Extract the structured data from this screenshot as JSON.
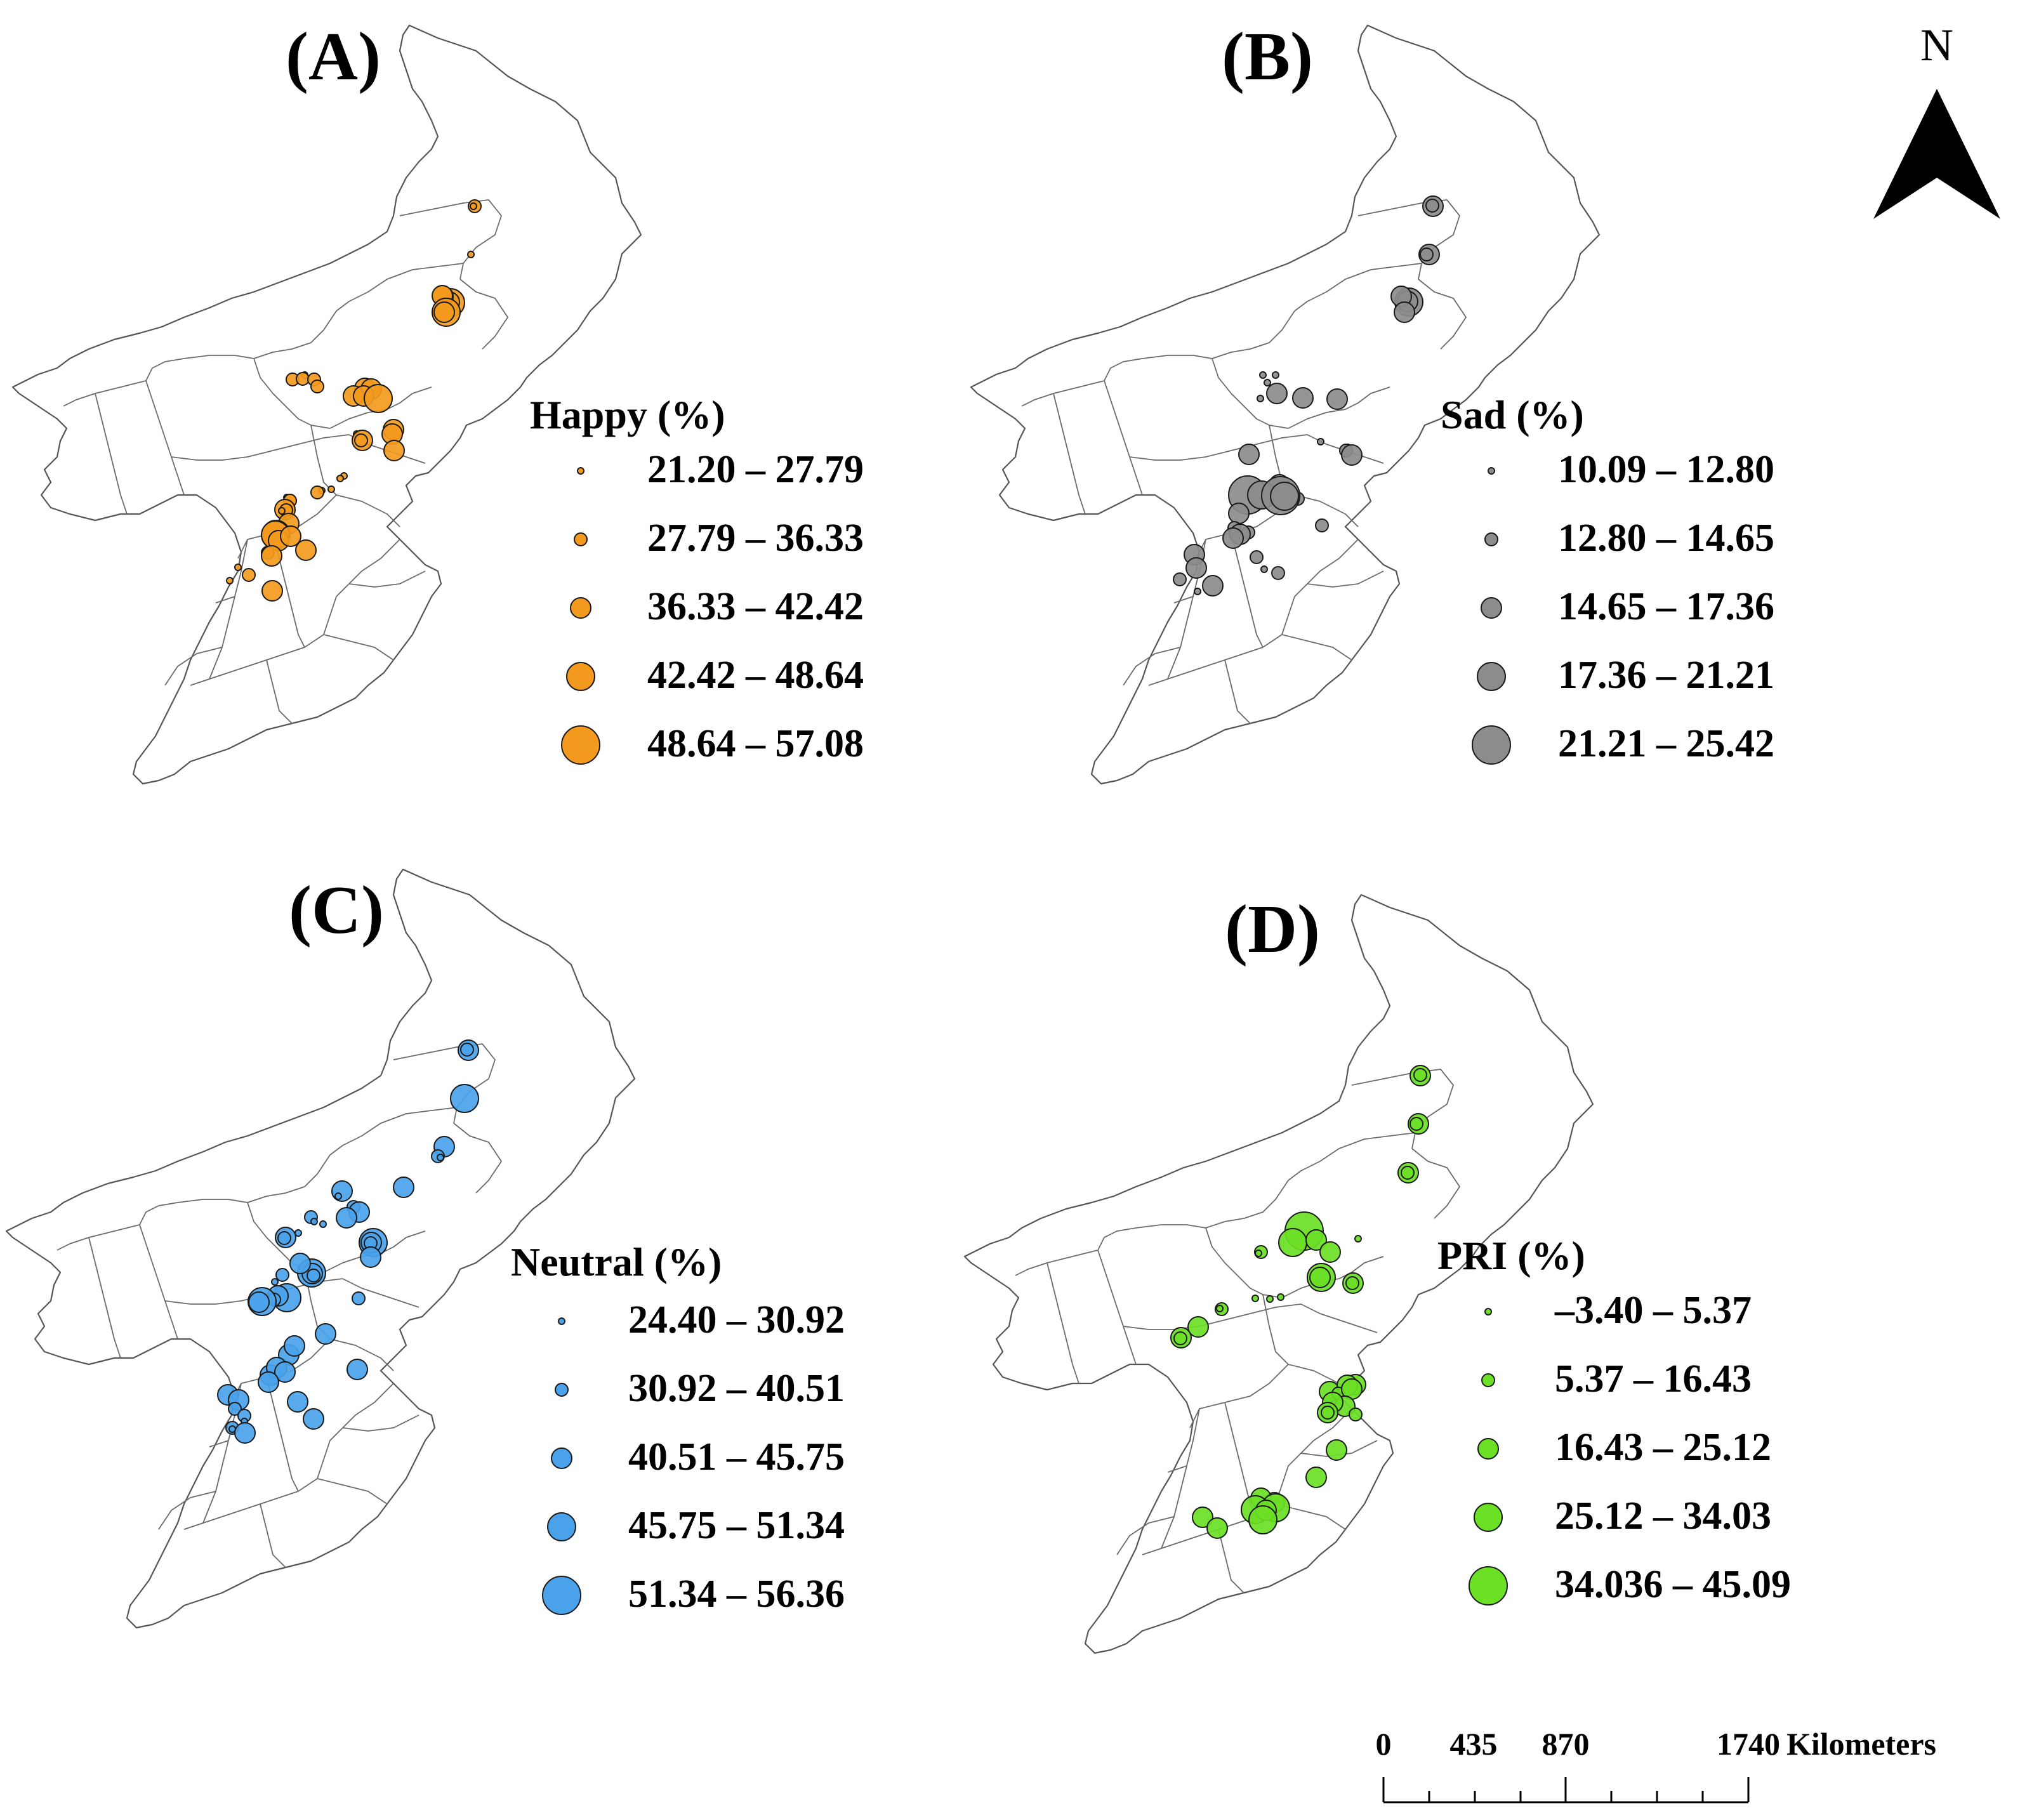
{
  "panels": [
    {
      "id": "A",
      "label": "(A)",
      "legend_title": "Happy (%)",
      "color": "#f39a1e",
      "classes": [
        "21.20 – 27.79",
        "27.79 – 36.33",
        "36.33 – 42.42",
        "42.42 – 48.64",
        "48.64 – 57.08"
      ],
      "sites": [
        [
          408,
          305,
          2
        ],
        [
          406,
          305,
          1
        ],
        [
          402,
          381,
          1
        ],
        [
          370,
          457,
          4
        ],
        [
          368,
          456,
          3
        ],
        [
          358,
          447,
          3
        ],
        [
          357,
          446,
          3
        ],
        [
          363,
          472,
          4
        ],
        [
          360,
          472,
          3
        ],
        [
          140,
          571,
          1
        ],
        [
          121,
          578,
          2
        ],
        [
          137,
          577,
          2
        ],
        [
          155,
          578,
          2
        ],
        [
          160,
          589,
          2
        ],
        [
          235,
          592,
          3
        ],
        [
          245,
          593,
          3
        ],
        [
          217,
          604,
          3
        ],
        [
          233,
          604,
          3
        ],
        [
          256,
          608,
          4
        ],
        [
          280,
          657,
          3
        ],
        [
          278,
          664,
          3
        ],
        [
          222,
          664,
          1
        ],
        [
          231,
          674,
          3
        ],
        [
          229,
          674,
          2
        ],
        [
          281,
          690,
          3
        ],
        [
          202,
          730,
          1
        ],
        [
          196,
          734,
          1
        ],
        [
          182,
          751,
          1
        ],
        [
          167,
          753,
          1
        ],
        [
          160,
          756,
          2
        ],
        [
          112,
          764,
          1
        ],
        [
          117,
          769,
          2
        ],
        [
          117,
          769,
          2
        ],
        [
          109,
          783,
          3
        ],
        [
          111,
          784,
          2
        ],
        [
          104,
          785,
          1
        ],
        [
          115,
          805,
          3
        ],
        [
          101,
          810,
          1
        ],
        [
          95,
          822,
          4
        ],
        [
          94,
          823,
          4
        ],
        [
          99,
          832,
          3
        ],
        [
          118,
          825,
          3
        ],
        [
          142,
          847,
          3
        ],
        [
          82,
          851,
          2
        ],
        [
          88,
          856,
          3
        ],
        [
          35,
          874,
          1
        ],
        [
          52,
          886,
          2
        ],
        [
          22,
          895,
          1
        ],
        [
          89,
          911,
          3
        ]
      ],
      "legend_sizes": [
        1,
        2,
        3,
        4,
        5
      ]
    },
    {
      "id": "B",
      "label": "(B)",
      "legend_title": "Sad (%)",
      "color": "#8c8c8c",
      "classes": [
        "10.09 – 12.80",
        "12.80 – 14.65",
        "14.65 – 17.36",
        "17.36 – 21.21",
        "21.21 – 25.42"
      ],
      "sites": [
        [
          408,
          305,
          3
        ],
        [
          407,
          304,
          2
        ],
        [
          402,
          381,
          3
        ],
        [
          398,
          381,
          2
        ],
        [
          370,
          456,
          4
        ],
        [
          368,
          455,
          3
        ],
        [
          358,
          447,
          3
        ],
        [
          363,
          472,
          3
        ],
        [
          147,
          583,
          1
        ],
        [
          160,
          571,
          1
        ],
        [
          140,
          571,
          1
        ],
        [
          162,
          600,
          3
        ],
        [
          203,
          607,
          3
        ],
        [
          136,
          608,
          1
        ],
        [
          257,
          609,
          3
        ],
        [
          231,
          676,
          1
        ],
        [
          274,
          685,
          1
        ],
        [
          271,
          690,
          2
        ],
        [
          118,
          696,
          3
        ],
        [
          166,
          744,
          3
        ],
        [
          195,
          766,
          2
        ],
        [
          233,
          808,
          2
        ],
        [
          280,
          697,
          3
        ],
        [
          116,
          760,
          5
        ],
        [
          138,
          760,
          4
        ],
        [
          168,
          761,
          5
        ],
        [
          174,
          762,
          4
        ],
        [
          102,
          789,
          3
        ],
        [
          95,
          812,
          2
        ],
        [
          117,
          819,
          2
        ],
        [
          104,
          822,
          3
        ],
        [
          93,
          828,
          3
        ],
        [
          130,
          858,
          2
        ],
        [
          164,
          883,
          2
        ],
        [
          142,
          877,
          1
        ],
        [
          32,
          854,
          3
        ],
        [
          35,
          875,
          3
        ],
        [
          9,
          893,
          2
        ],
        [
          37,
          912,
          1
        ],
        [
          61,
          903,
          3
        ]
      ],
      "legend_sizes": [
        1,
        2,
        3,
        4,
        5
      ]
    },
    {
      "id": "C",
      "label": "(C)",
      "legend_title": "Neutral (%)",
      "color": "#4aa3ea",
      "classes": [
        "24.40 – 30.92",
        "30.92 – 40.51",
        "40.51 – 45.75",
        "45.75 – 51.34",
        "51.34 – 56.36"
      ],
      "sites": [
        [
          408,
          305,
          3
        ],
        [
          406,
          304,
          2
        ],
        [
          402,
          381,
          4
        ],
        [
          370,
          457,
          3
        ],
        [
          360,
          472,
          2
        ],
        [
          364,
          474,
          1
        ],
        [
          306,
          521,
          3
        ],
        [
          209,
          527,
          3
        ],
        [
          203,
          535,
          1
        ],
        [
          227,
          552,
          2
        ],
        [
          236,
          560,
          3
        ],
        [
          160,
          568,
          2
        ],
        [
          165,
          575,
          1
        ],
        [
          216,
          569,
          3
        ],
        [
          179,
          579,
          1
        ],
        [
          258,
          608,
          4
        ],
        [
          255,
          608,
          3
        ],
        [
          254,
          609,
          2
        ],
        [
          140,
          593,
          1
        ],
        [
          120,
          600,
          3
        ],
        [
          118,
          601,
          2
        ],
        [
          122,
          695,
          4
        ],
        [
          108,
          692,
          3
        ],
        [
          102,
          698,
          2
        ],
        [
          83,
          701,
          4
        ],
        [
          78,
          702,
          3
        ],
        [
          161,
          656,
          4
        ],
        [
          162,
          657,
          3
        ],
        [
          164,
          660,
          2
        ],
        [
          254,
          631,
          3
        ],
        [
          143,
          641,
          3
        ],
        [
          115,
          659,
          2
        ],
        [
          103,
          670,
          1
        ],
        [
          235,
          696,
          2
        ],
        [
          233,
          808,
          3
        ],
        [
          125,
          785,
          3
        ],
        [
          183,
          752,
          3
        ],
        [
          134,
          771,
          3
        ],
        [
          96,
          817,
          3
        ],
        [
          106,
          805,
          3
        ],
        [
          119,
          812,
          3
        ],
        [
          93,
          828,
          3
        ],
        [
          139,
          859,
          3
        ],
        [
          164,
          886,
          3
        ],
        [
          29,
          848,
          3
        ],
        [
          46,
          856,
          3
        ],
        [
          40,
          870,
          2
        ],
        [
          55,
          881,
          2
        ],
        [
          36,
          900,
          2
        ],
        [
          36,
          902,
          1
        ],
        [
          55,
          890,
          1
        ],
        [
          56,
          908,
          3
        ]
      ],
      "legend_sizes": [
        1,
        2,
        3,
        4,
        5
      ]
    },
    {
      "id": "D",
      "label": "(D)",
      "legend_title": "PRI (%)",
      "color": "#6be025",
      "classes": [
        "–3.40 – 5.37",
        "5.37 – 16.43",
        "16.43 – 25.12",
        "25.12 – 34.03",
        "34.036 – 45.09"
      ],
      "sites": [
        [
          398,
          305,
          3
        ],
        [
          398,
          304,
          2
        ],
        [
          395,
          381,
          3
        ],
        [
          392,
          381,
          2
        ],
        [
          379,
          458,
          3
        ],
        [
          378,
          458,
          2
        ],
        [
          215,
          550,
          5
        ],
        [
          197,
          568,
          4
        ],
        [
          234,
          564,
          3
        ],
        [
          256,
          583,
          3
        ],
        [
          300,
          562,
          1
        ],
        [
          147,
          583,
          2
        ],
        [
          143,
          585,
          1
        ],
        [
          242,
          623,
          4
        ],
        [
          240,
          623,
          3
        ],
        [
          292,
          632,
          3
        ],
        [
          291,
          632,
          2
        ],
        [
          138,
          656,
          1
        ],
        [
          161,
          657,
          1
        ],
        [
          178,
          654,
          1
        ],
        [
          85,
          673,
          2
        ],
        [
          82,
          672,
          1
        ],
        [
          48,
          701,
          3
        ],
        [
          21,
          718,
          3
        ],
        [
          20,
          719,
          2
        ],
        [
          255,
          803,
          3
        ],
        [
          296,
          792,
          3
        ],
        [
          283,
          793,
          3
        ],
        [
          269,
          806,
          2
        ],
        [
          290,
          799,
          3
        ],
        [
          279,
          826,
          3
        ],
        [
          260,
          820,
          3
        ],
        [
          252,
          836,
          3
        ],
        [
          252,
          836,
          2
        ],
        [
          296,
          839,
          2
        ],
        [
          266,
          895,
          3
        ],
        [
          234,
          938,
          3
        ],
        [
          168,
          978,
          3
        ],
        [
          147,
          971,
          3
        ],
        [
          170,
          986,
          4
        ],
        [
          138,
          989,
          4
        ],
        [
          155,
          990,
          3
        ],
        [
          150,
          1005,
          4
        ],
        [
          55,
          1001,
          3
        ],
        [
          78,
          1018,
          3
        ]
      ],
      "legend_sizes": [
        1,
        2,
        3,
        4,
        5
      ]
    }
  ],
  "north_arrow": {
    "label": "N"
  },
  "scale_bar": {
    "ticks": [
      "0",
      "435",
      "870",
      "1740"
    ],
    "unit": "Kilometers"
  }
}
